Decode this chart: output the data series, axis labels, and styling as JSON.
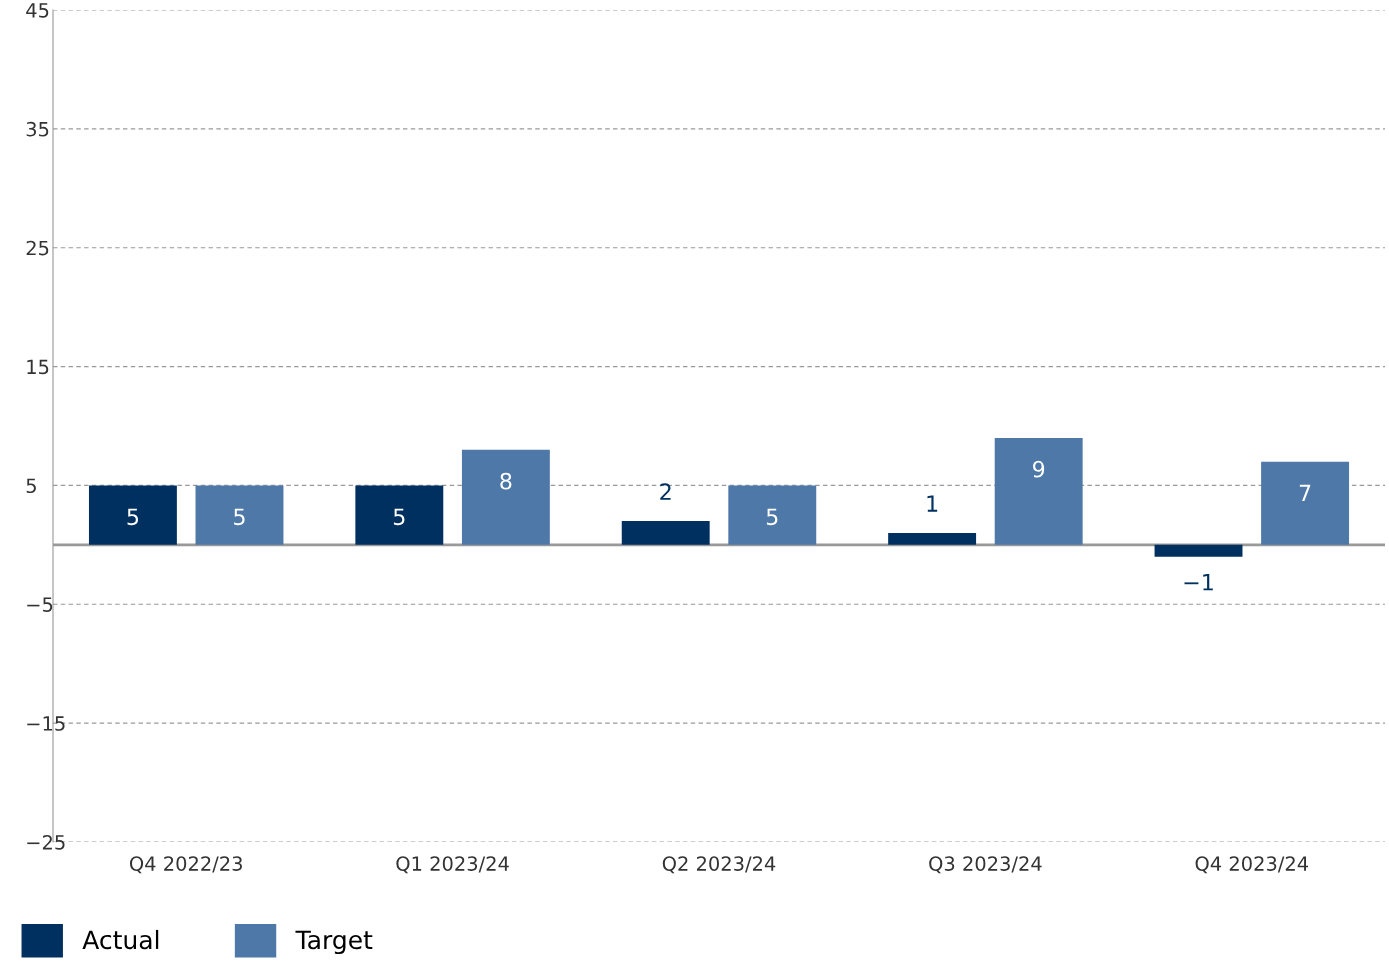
{
  "chart_data": {
    "type": "bar",
    "categories": [
      "Q4 2022/23",
      "Q1 2023/24",
      "Q2 2023/24",
      "Q3 2023/24",
      "Q4 2023/24"
    ],
    "series": [
      {
        "name": "Actual",
        "color": "#003060",
        "values": [
          5,
          5,
          2,
          1,
          -1
        ]
      },
      {
        "name": "Target",
        "color": "#4d78a8",
        "values": [
          5,
          8,
          5,
          9,
          7
        ]
      }
    ],
    "ylim": [
      -25,
      45
    ],
    "yticks": [
      -25,
      -15,
      -5,
      5,
      15,
      25,
      35,
      45
    ],
    "grid": "y",
    "legend": "bottom left",
    "data_labels": true
  }
}
